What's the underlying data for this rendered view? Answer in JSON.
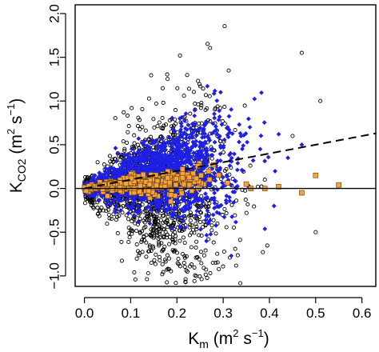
{
  "chart_data": {
    "type": "scatter",
    "title": "",
    "xlabel": {
      "base": "K",
      "sub": "m",
      "unit_open": " (m",
      "sup1": "2",
      "unit_mid": " s",
      "sup2": "−1",
      "unit_close": ")"
    },
    "ylabel": {
      "base": "K",
      "sub": "CO2",
      "unit_open": " (m",
      "sup1": "2",
      "unit_mid": " s",
      "sup2": "−1",
      "unit_close": ")"
    },
    "xlim": [
      -0.02,
      0.63
    ],
    "ylim": [
      -1.12,
      2.1
    ],
    "x_ticks": [
      {
        "value": 0.0,
        "label": "0.0"
      },
      {
        "value": 0.1,
        "label": "0.1"
      },
      {
        "value": 0.2,
        "label": "0.2"
      },
      {
        "value": 0.3,
        "label": "0.3"
      },
      {
        "value": 0.4,
        "label": "0.4"
      },
      {
        "value": 0.5,
        "label": "0.5"
      },
      {
        "value": 0.6,
        "label": "0.6"
      }
    ],
    "y_ticks": [
      {
        "value": -1.0,
        "label": "−1.0"
      },
      {
        "value": -0.5,
        "label": "−0.5"
      },
      {
        "value": 0.0,
        "label": "0.0"
      },
      {
        "value": 0.5,
        "label": "0.5"
      },
      {
        "value": 1.0,
        "label": "1.0"
      },
      {
        "value": 1.5,
        "label": "1.5"
      },
      {
        "value": 2.0,
        "label": "2.0"
      }
    ],
    "grid": false,
    "reference_lines": [
      {
        "type": "horizontal",
        "y": 0.0,
        "style": "solid",
        "color": "#000000"
      },
      {
        "type": "line",
        "slope": 1.0,
        "intercept": 0.0,
        "style": "dashed",
        "color": "#000000"
      }
    ],
    "series": [
      {
        "marker": "open-circle",
        "color": "#000000",
        "count": 1500,
        "x_mean": 0.15,
        "x_sd": 0.085,
        "x_min": 0.0,
        "x_max": 0.52,
        "y_sd_base": 0.07,
        "y_sd_slope": 2.4,
        "y_clip": [
          -1.12,
          2.1
        ],
        "outliers": [
          [
            0.51,
            1.0
          ],
          [
            0.47,
            1.55
          ],
          [
            0.5,
            -0.5
          ],
          [
            0.39,
            0.1
          ],
          [
            0.45,
            0.6
          ]
        ]
      },
      {
        "marker": "filled-diamond",
        "color": "#1f1fe6",
        "count": 1600,
        "x_mean": 0.16,
        "x_sd": 0.08,
        "x_min": 0.0,
        "x_max": 0.48,
        "y_mean_slope": 0.9,
        "y_sd_base": 0.04,
        "y_sd_slope": 1.05,
        "y_clip": [
          -0.95,
          1.25
        ],
        "outliers": [
          [
            0.44,
            0.35
          ],
          [
            0.47,
            0.5
          ],
          [
            0.41,
            -0.2
          ],
          [
            0.38,
            0.45
          ]
        ]
      },
      {
        "marker": "filled-square",
        "color": "#f5a33d",
        "count": 380,
        "x_mean": 0.12,
        "x_sd": 0.065,
        "x_min": 0.0,
        "x_max": 0.32,
        "y_mean_slope": 0.45,
        "y_sd_base": 0.02,
        "y_sd_slope": 0.25,
        "y_clip": [
          -0.25,
          0.45
        ],
        "points": [
          [
            0.35,
            0.05
          ],
          [
            0.39,
            0.0
          ],
          [
            0.47,
            -0.05
          ],
          [
            0.5,
            0.15
          ],
          [
            0.55,
            0.04
          ],
          [
            0.42,
            0.02
          ],
          [
            0.36,
            0.0
          ]
        ]
      }
    ]
  }
}
